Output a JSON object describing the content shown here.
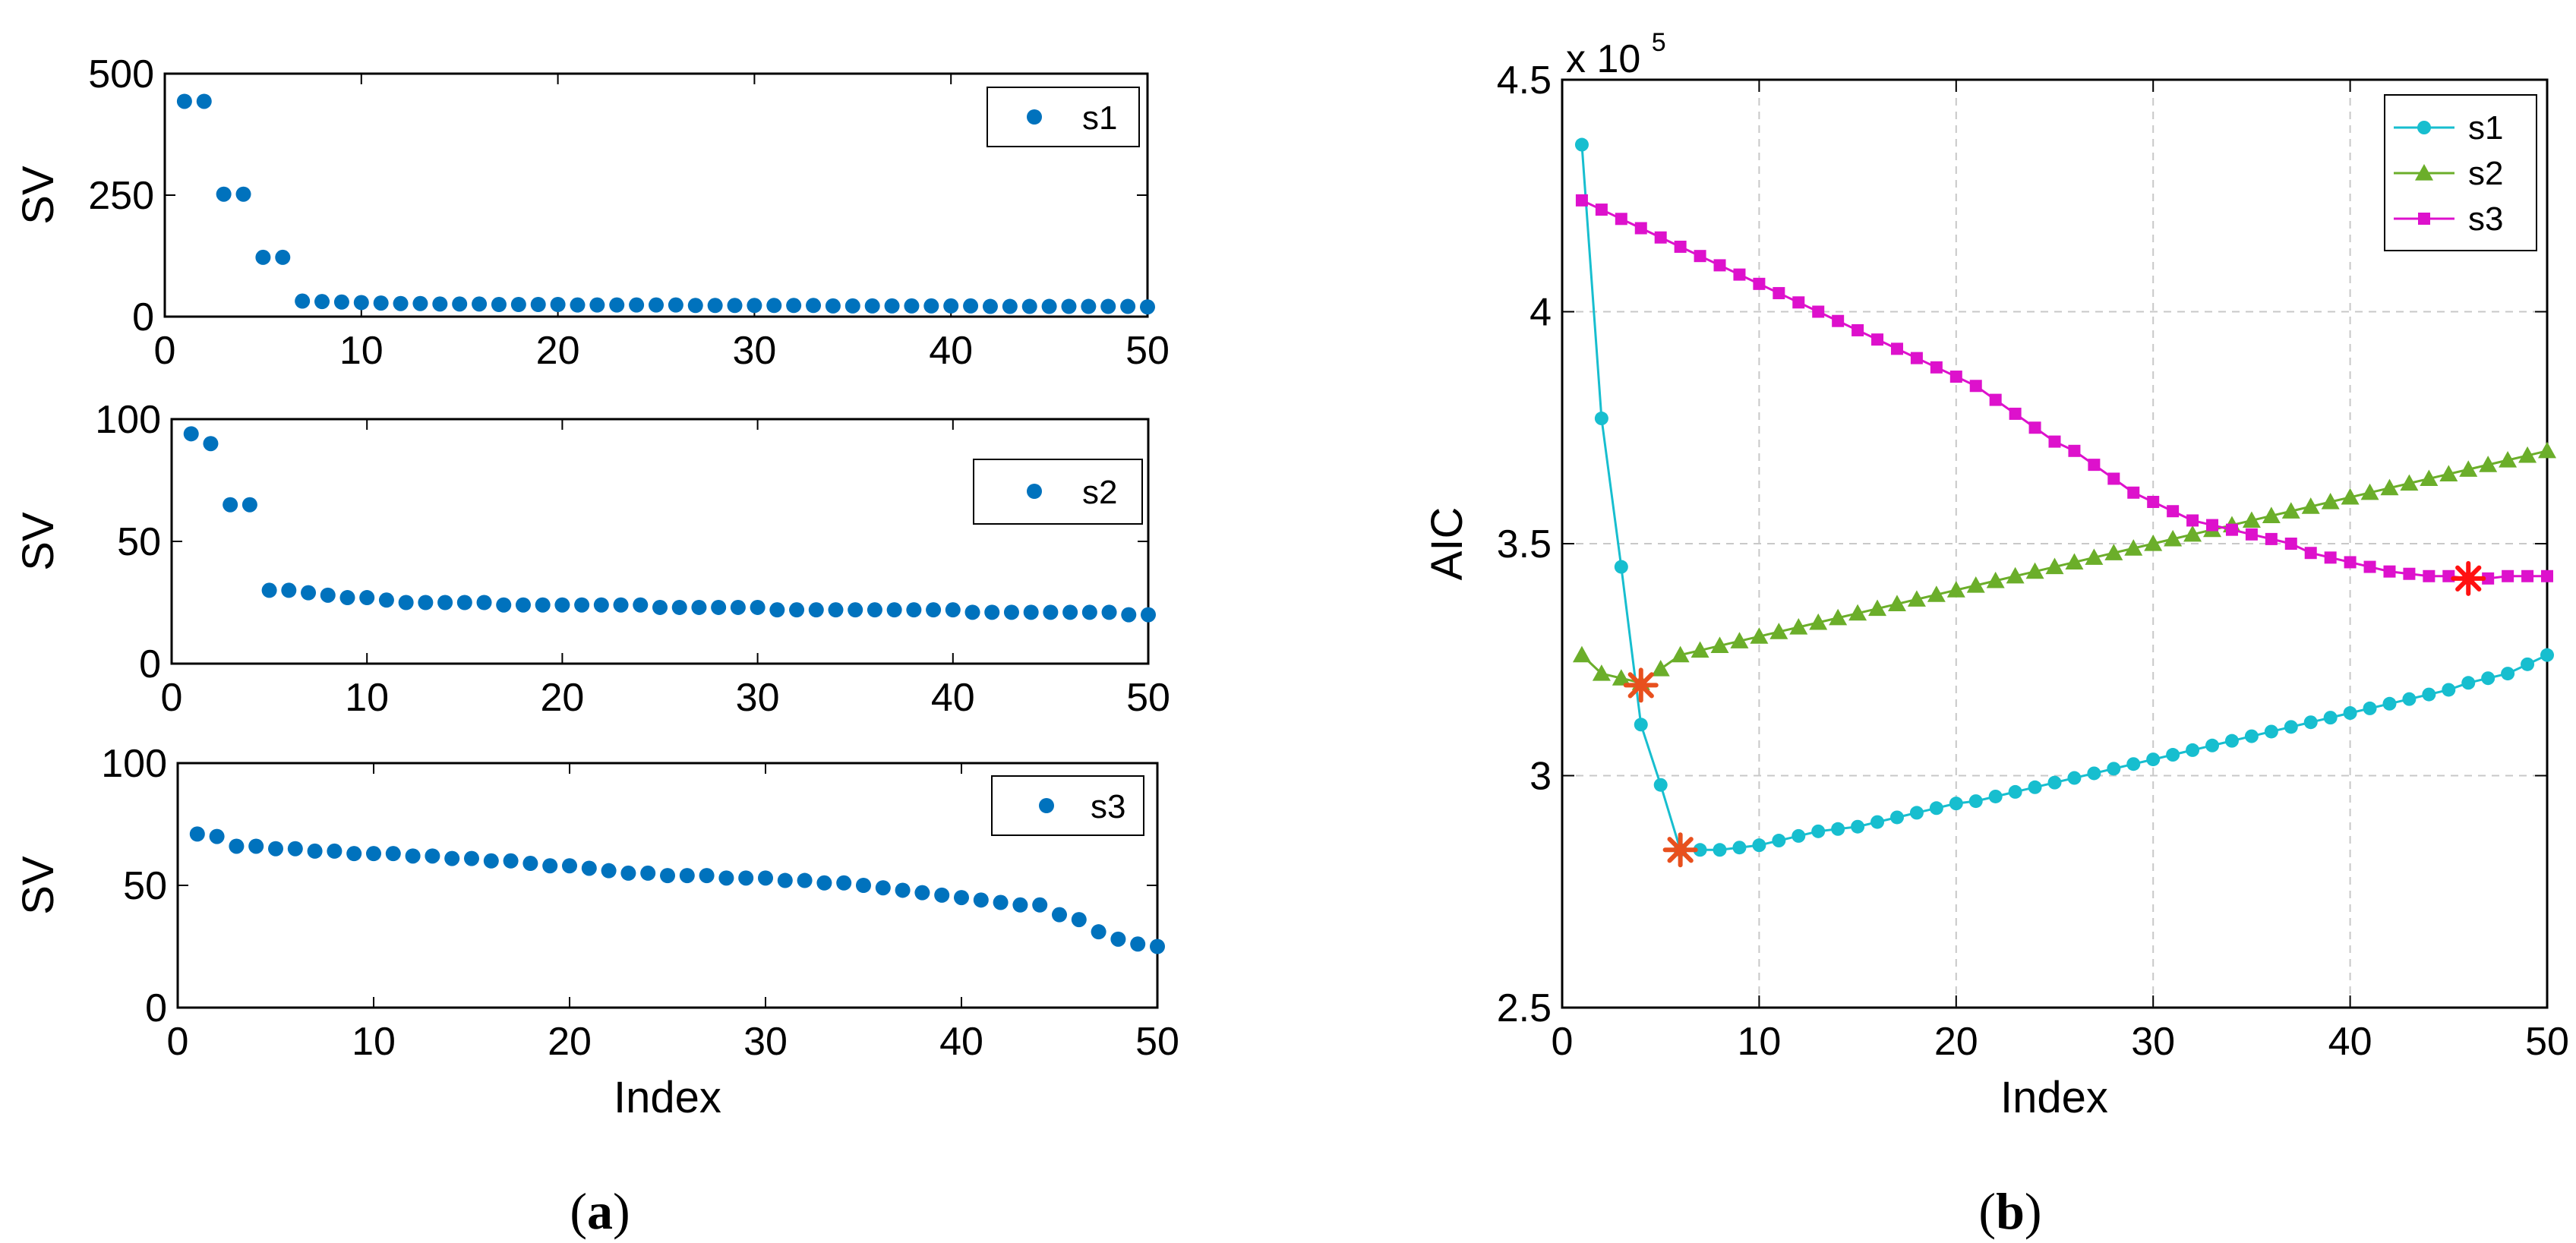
{
  "figure": {
    "caption_a": {
      "open": "(",
      "letter": "a",
      "close": ")"
    },
    "caption_b": {
      "open": "(",
      "letter": "b",
      "close": ")"
    }
  },
  "chart_data": [
    {
      "type": "scatter",
      "panel": "a-top",
      "ylabel": "SV",
      "xlabel": "",
      "xlim": [
        0,
        50
      ],
      "ylim": [
        0,
        500
      ],
      "xticks": [
        0,
        10,
        20,
        30,
        40,
        50
      ],
      "yticks": [
        0,
        250,
        500
      ],
      "grid": false,
      "legend": "top-right",
      "color": "#0072BD",
      "series": [
        {
          "name": "s1",
          "x": [
            1,
            2,
            3,
            4,
            5,
            6,
            7,
            8,
            9,
            10,
            11,
            12,
            13,
            14,
            15,
            16,
            17,
            18,
            19,
            20,
            21,
            22,
            23,
            24,
            25,
            26,
            27,
            28,
            29,
            30,
            31,
            32,
            33,
            34,
            35,
            36,
            37,
            38,
            39,
            40,
            41,
            42,
            43,
            44,
            45,
            46,
            47,
            48,
            49,
            50
          ],
          "y": [
            443,
            443,
            252,
            252,
            122,
            122,
            32,
            31,
            30,
            29,
            28,
            27,
            27,
            26,
            26,
            26,
            25,
            25,
            25,
            25,
            24,
            24,
            24,
            24,
            24,
            24,
            23,
            23,
            23,
            23,
            23,
            23,
            23,
            22,
            22,
            22,
            22,
            22,
            22,
            22,
            22,
            21,
            21,
            21,
            21,
            21,
            21,
            21,
            21,
            20
          ]
        }
      ]
    },
    {
      "type": "scatter",
      "panel": "a-middle",
      "ylabel": "SV",
      "xlabel": "",
      "xlim": [
        0,
        50
      ],
      "ylim": [
        0,
        100
      ],
      "xticks": [
        0,
        10,
        20,
        30,
        40,
        50
      ],
      "yticks": [
        0,
        50,
        100
      ],
      "grid": false,
      "legend": "top-right",
      "color": "#0072BD",
      "series": [
        {
          "name": "s2",
          "x": [
            1,
            2,
            3,
            4,
            5,
            6,
            7,
            8,
            9,
            10,
            11,
            12,
            13,
            14,
            15,
            16,
            17,
            18,
            19,
            20,
            21,
            22,
            23,
            24,
            25,
            26,
            27,
            28,
            29,
            30,
            31,
            32,
            33,
            34,
            35,
            36,
            37,
            38,
            39,
            40,
            41,
            42,
            43,
            44,
            45,
            46,
            47,
            48,
            49,
            50
          ],
          "y": [
            94,
            90,
            65,
            65,
            30,
            30,
            29,
            28,
            27,
            27,
            26,
            25,
            25,
            25,
            25,
            25,
            24,
            24,
            24,
            24,
            24,
            24,
            24,
            24,
            23,
            23,
            23,
            23,
            23,
            23,
            22,
            22,
            22,
            22,
            22,
            22,
            22,
            22,
            22,
            22,
            21,
            21,
            21,
            21,
            21,
            21,
            21,
            21,
            20,
            20
          ]
        }
      ]
    },
    {
      "type": "scatter",
      "panel": "a-bottom",
      "ylabel": "SV",
      "xlabel": "Index",
      "xlim": [
        0,
        50
      ],
      "ylim": [
        0,
        100
      ],
      "xticks": [
        0,
        10,
        20,
        30,
        40,
        50
      ],
      "yticks": [
        0,
        50,
        100
      ],
      "grid": false,
      "legend": "top-right",
      "color": "#0072BD",
      "series": [
        {
          "name": "s3",
          "x": [
            1,
            2,
            3,
            4,
            5,
            6,
            7,
            8,
            9,
            10,
            11,
            12,
            13,
            14,
            15,
            16,
            17,
            18,
            19,
            20,
            21,
            22,
            23,
            24,
            25,
            26,
            27,
            28,
            29,
            30,
            31,
            32,
            33,
            34,
            35,
            36,
            37,
            38,
            39,
            40,
            41,
            42,
            43,
            44,
            45,
            46,
            47,
            48,
            49,
            50
          ],
          "y": [
            71,
            70,
            66,
            66,
            65,
            65,
            64,
            64,
            63,
            63,
            63,
            62,
            62,
            61,
            61,
            60,
            60,
            59,
            58,
            58,
            57,
            56,
            55,
            55,
            54,
            54,
            54,
            53,
            53,
            53,
            52,
            52,
            51,
            51,
            50,
            49,
            48,
            47,
            46,
            45,
            44,
            43,
            42,
            42,
            38,
            36,
            31,
            28,
            26,
            25
          ]
        }
      ]
    },
    {
      "type": "line",
      "panel": "b",
      "ylabel": "AIC",
      "xlabel": "Index",
      "xlim": [
        0,
        50
      ],
      "ylim": [
        2.5,
        4.5
      ],
      "xticks": [
        0,
        10,
        20,
        30,
        40,
        50
      ],
      "yticks": [
        2.5,
        3,
        3.5,
        4,
        4.5
      ],
      "y_multiplier": {
        "base": "x 10",
        "exponent": "5"
      },
      "grid": true,
      "legend": "top-right",
      "x": [
        1,
        2,
        3,
        4,
        5,
        6,
        7,
        8,
        9,
        10,
        11,
        12,
        13,
        14,
        15,
        16,
        17,
        18,
        19,
        20,
        21,
        22,
        23,
        24,
        25,
        26,
        27,
        28,
        29,
        30,
        31,
        32,
        33,
        34,
        35,
        36,
        37,
        38,
        39,
        40,
        41,
        42,
        43,
        44,
        45,
        46,
        47,
        48,
        49,
        50
      ],
      "series": [
        {
          "name": "s1",
          "color": "#17BECF",
          "marker": "circle",
          "values": [
            4.36,
            3.77,
            3.45,
            3.11,
            2.98,
            2.84,
            2.84,
            2.84,
            2.845,
            2.85,
            2.86,
            2.87,
            2.88,
            2.885,
            2.89,
            2.9,
            2.91,
            2.92,
            2.93,
            2.94,
            2.945,
            2.955,
            2.965,
            2.975,
            2.985,
            2.995,
            3.005,
            3.015,
            3.025,
            3.035,
            3.045,
            3.055,
            3.065,
            3.075,
            3.085,
            3.095,
            3.105,
            3.115,
            3.125,
            3.135,
            3.145,
            3.155,
            3.165,
            3.175,
            3.185,
            3.2,
            3.21,
            3.22,
            3.24,
            3.26
          ],
          "minimum": {
            "x": 6,
            "y": 2.84,
            "color": "#E8501E"
          }
        },
        {
          "name": "s2",
          "color": "#6BAE2A",
          "marker": "triangle",
          "values": [
            3.26,
            3.22,
            3.21,
            3.2,
            3.23,
            3.26,
            3.27,
            3.28,
            3.29,
            3.3,
            3.31,
            3.32,
            3.33,
            3.34,
            3.35,
            3.36,
            3.37,
            3.38,
            3.39,
            3.4,
            3.41,
            3.42,
            3.43,
            3.44,
            3.45,
            3.46,
            3.47,
            3.48,
            3.49,
            3.5,
            3.51,
            3.52,
            3.53,
            3.54,
            3.55,
            3.56,
            3.57,
            3.58,
            3.59,
            3.6,
            3.61,
            3.62,
            3.63,
            3.64,
            3.65,
            3.66,
            3.67,
            3.68,
            3.69,
            3.7
          ],
          "minimum": {
            "x": 4,
            "y": 3.195,
            "color": "#E8501E"
          }
        },
        {
          "name": "s3",
          "color": "#DD11CC",
          "marker": "square",
          "values": [
            4.24,
            4.22,
            4.2,
            4.18,
            4.16,
            4.14,
            4.12,
            4.1,
            4.08,
            4.06,
            4.04,
            4.02,
            4.0,
            3.98,
            3.96,
            3.94,
            3.92,
            3.9,
            3.88,
            3.86,
            3.84,
            3.81,
            3.78,
            3.75,
            3.72,
            3.7,
            3.67,
            3.64,
            3.61,
            3.59,
            3.57,
            3.55,
            3.54,
            3.53,
            3.52,
            3.51,
            3.5,
            3.48,
            3.47,
            3.46,
            3.45,
            3.44,
            3.435,
            3.43,
            3.43,
            3.425,
            3.425,
            3.43,
            3.43,
            3.43
          ],
          "minimum": {
            "x": 46,
            "y": 3.425,
            "color": "#FF1111"
          }
        }
      ]
    }
  ]
}
